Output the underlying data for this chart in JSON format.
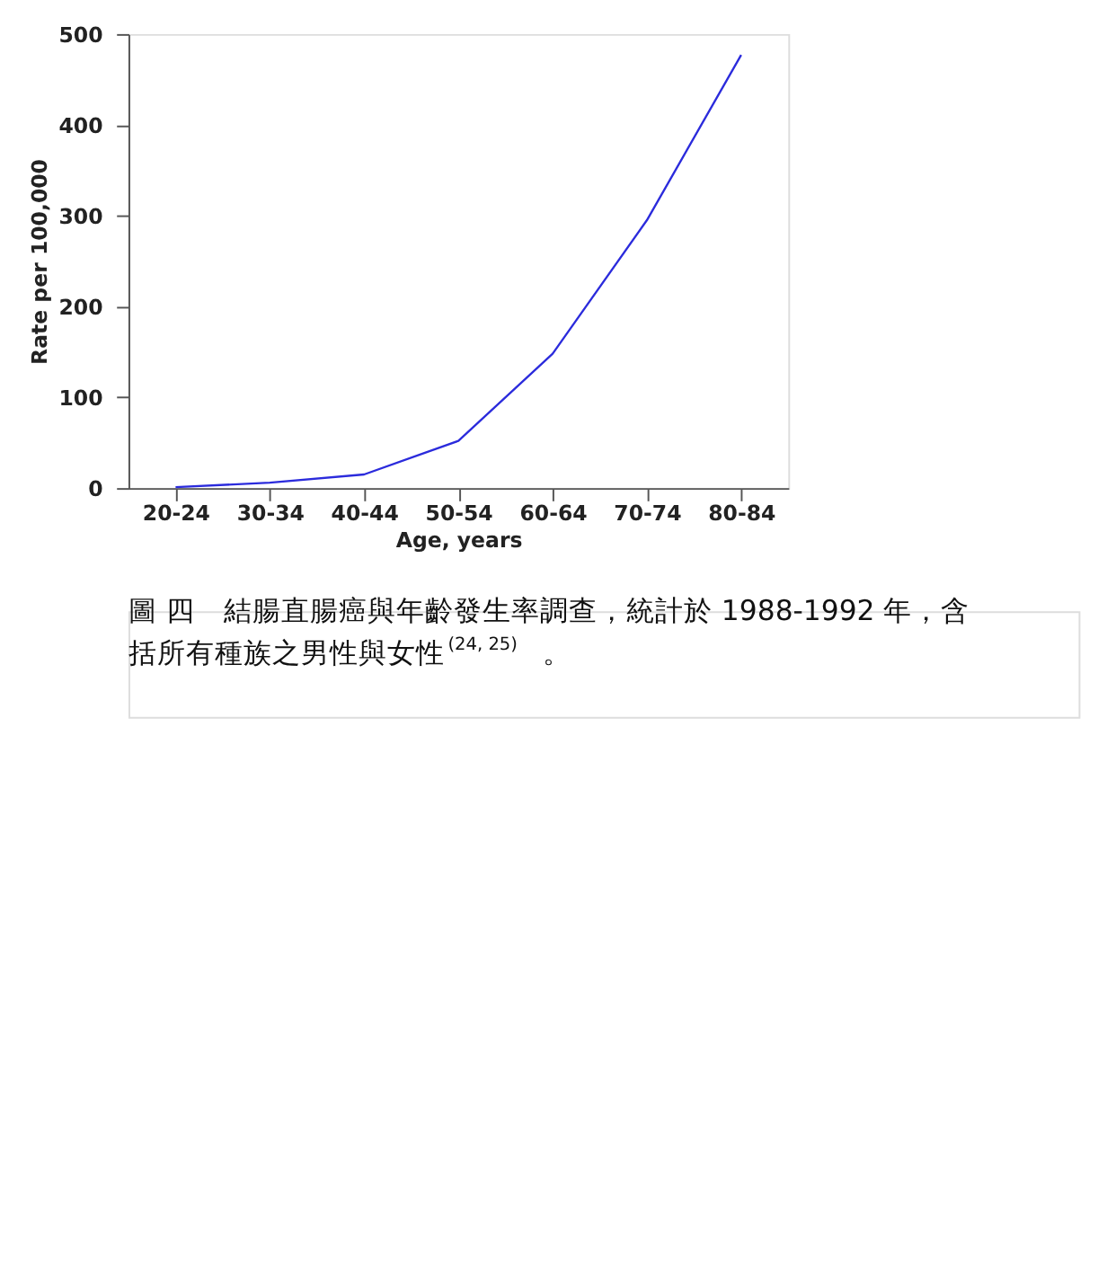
{
  "chart_data": {
    "type": "line",
    "xlabel": "Age, years",
    "ylabel": "Rate per 100,000",
    "categories": [
      "20-24",
      "30-34",
      "40-44",
      "50-54",
      "60-64",
      "70-74",
      "80-84"
    ],
    "series": [
      {
        "color": "#2b2bdc",
        "values": [
          1,
          6,
          15,
          52,
          148,
          295,
          477
        ]
      }
    ],
    "ylim": [
      0,
      500
    ],
    "yticks": [
      0,
      100,
      200,
      300,
      400,
      500
    ],
    "grid": false,
    "legend": false,
    "marker": "none",
    "line_style": "solid",
    "annotations": [
      "圖 四　結腸直腸癌與年齡發生率調查，統計於 1988-1992 年，含括所有種族之男性與女性$^{(24, 25)}$ 。"
    ]
  }
}
